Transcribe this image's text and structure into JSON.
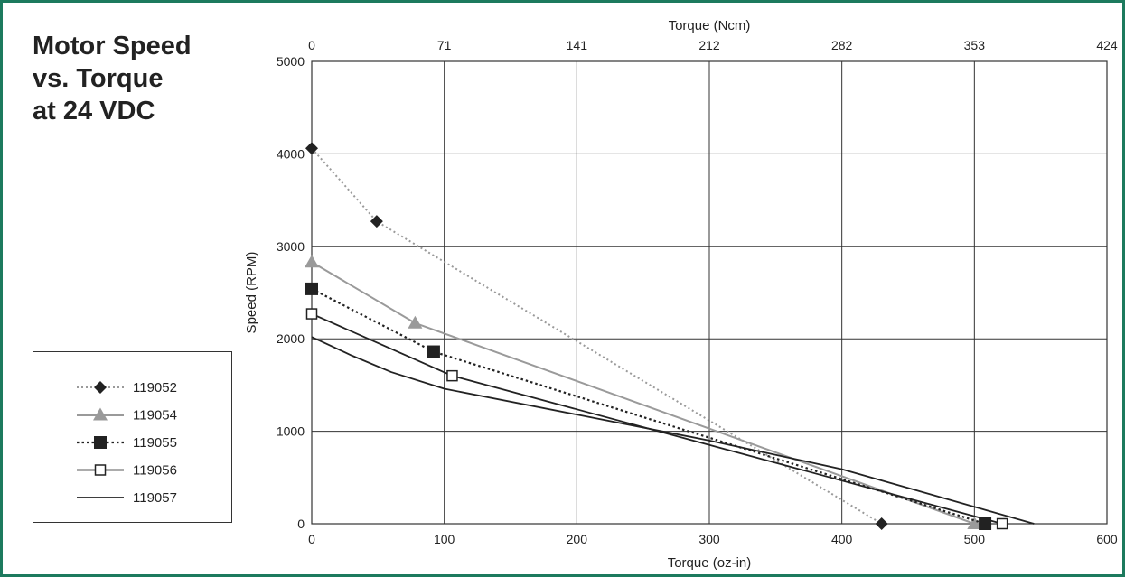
{
  "title_lines": [
    "Motor Speed",
    "vs. Torque",
    "at 24 VDC"
  ],
  "colors": {
    "frame": "#1d7a5e",
    "black": "#222222",
    "gray": "#9a9a9a",
    "grid": "#333333"
  },
  "chart_data": {
    "type": "line",
    "title": "Motor Speed vs. Torque at 24 VDC",
    "xlabel": "Torque (oz-in)",
    "ylabel": "Speed (RPM)",
    "secondary_xlabel": "Torque (Ncm)",
    "xlim": [
      0,
      600
    ],
    "ylim": [
      0,
      5000
    ],
    "x_ticks": [
      0,
      100,
      200,
      300,
      400,
      500,
      600
    ],
    "y_ticks": [
      0,
      1000,
      2000,
      3000,
      4000,
      5000
    ],
    "secondary_x_ticks": [
      "0",
      "71",
      "141",
      "212",
      "282",
      "353",
      "424"
    ],
    "grid": true,
    "legend_position": "left",
    "series": [
      {
        "name": "119052",
        "color": "#9a9a9a",
        "line_style": "dotted",
        "marker": "diamond",
        "marker_color": "#222222",
        "x": [
          0,
          49,
          430
        ],
        "y": [
          4060,
          3270,
          0
        ]
      },
      {
        "name": "119054",
        "color": "#9a9a9a",
        "line_style": "solid",
        "marker": "triangle",
        "marker_color": "#9a9a9a",
        "x": [
          0,
          78,
          500
        ],
        "y": [
          2830,
          2170,
          0
        ]
      },
      {
        "name": "119055",
        "color": "#222222",
        "line_style": "dotted",
        "marker": "square-filled",
        "marker_color": "#222222",
        "x": [
          0,
          92,
          508
        ],
        "y": [
          2540,
          1860,
          0
        ]
      },
      {
        "name": "119056",
        "color": "#222222",
        "line_style": "solid",
        "marker": "square-open",
        "marker_color": "#222222",
        "x": [
          0,
          106,
          521
        ],
        "y": [
          2270,
          1600,
          0
        ]
      },
      {
        "name": "119057",
        "color": "#222222",
        "line_style": "solid",
        "marker": "none",
        "marker_color": "#222222",
        "x": [
          0,
          30,
          60,
          100,
          200,
          300,
          400,
          545
        ],
        "y": [
          2020,
          1820,
          1640,
          1460,
          1180,
          900,
          590,
          0
        ]
      }
    ]
  }
}
